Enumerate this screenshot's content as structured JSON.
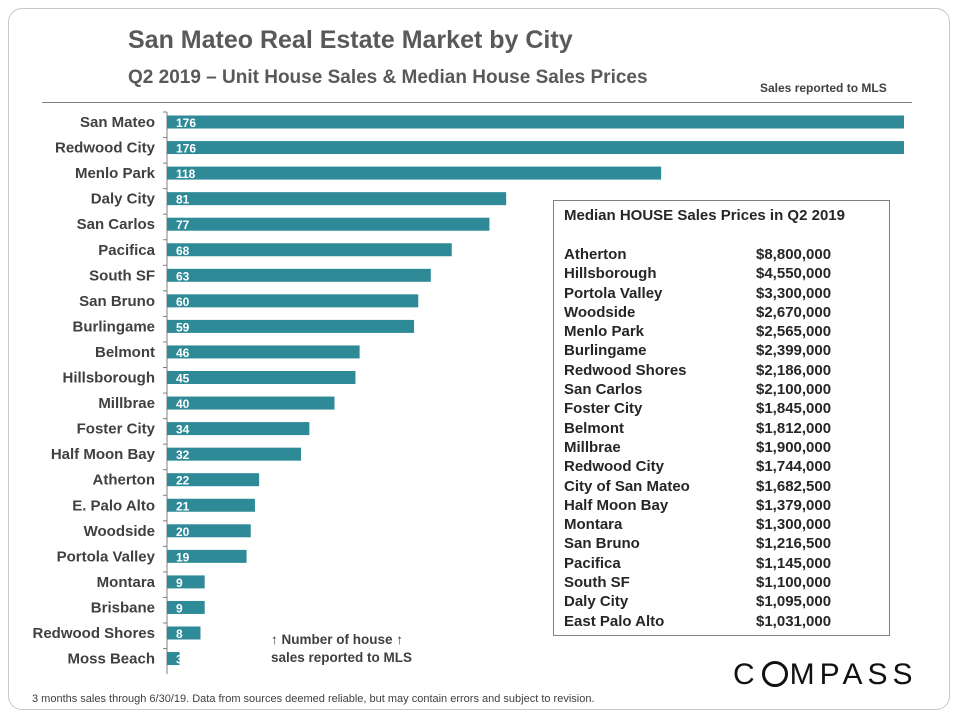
{
  "title": "San Mateo Real Estate Market by City",
  "subtitle": "Q2 2019 – Unit House Sales & Median House Sales Prices",
  "note_top_right": "Sales reported to MLS",
  "annotation_line1": "↑ Number of house ↑",
  "annotation_line2": "sales reported to MLS",
  "footnote": "3 months sales through 6/30/19. Data from sources deemed reliable, but may contain errors and subject to revision.",
  "logo": {
    "left": "C",
    "right": "MPASS"
  },
  "colors": {
    "bar": "#2e8a96",
    "text": "#404040"
  },
  "chart_data": {
    "type": "bar",
    "orientation": "horizontal",
    "categories": [
      "San Mateo",
      "Redwood City",
      "Menlo Park",
      "Daly City",
      "San Carlos",
      "Pacifica",
      "South SF",
      "San Bruno",
      "Burlingame",
      "Belmont",
      "Hillsborough",
      "Millbrae",
      "Foster City",
      "Half Moon Bay",
      "Atherton",
      "E. Palo Alto",
      "Woodside",
      "Portola Valley",
      "Montara",
      "Brisbane",
      "Redwood Shores",
      "Moss Beach"
    ],
    "values": [
      176,
      176,
      118,
      81,
      77,
      68,
      63,
      60,
      59,
      46,
      45,
      40,
      34,
      32,
      22,
      21,
      20,
      19,
      9,
      9,
      8,
      3
    ],
    "xlim": [
      0,
      176
    ],
    "data_labels": true,
    "grid": false
  },
  "price_table": {
    "title": "Median HOUSE Sales Prices in Q2 2019",
    "rows": [
      {
        "city": "Atherton",
        "price": "$8,800,000"
      },
      {
        "city": "Hillsborough",
        "price": "$4,550,000"
      },
      {
        "city": "Portola Valley",
        "price": "$3,300,000"
      },
      {
        "city": "Woodside",
        "price": "$2,670,000"
      },
      {
        "city": "Menlo Park",
        "price": "$2,565,000"
      },
      {
        "city": "Burlingame",
        "price": "$2,399,000"
      },
      {
        "city": "Redwood Shores",
        "price": "$2,186,000"
      },
      {
        "city": "San Carlos",
        "price": "$2,100,000"
      },
      {
        "city": "Foster City",
        "price": "$1,845,000"
      },
      {
        "city": "Belmont",
        "price": "$1,812,000"
      },
      {
        "city": "Millbrae",
        "price": "$1,900,000"
      },
      {
        "city": "Redwood City",
        "price": "$1,744,000"
      },
      {
        "city": "City of San Mateo",
        "price": "$1,682,500"
      },
      {
        "city": "Half Moon Bay",
        "price": "$1,379,000"
      },
      {
        "city": "Montara",
        "price": "$1,300,000"
      },
      {
        "city": "San Bruno",
        "price": "$1,216,500"
      },
      {
        "city": "Pacifica",
        "price": "$1,145,000"
      },
      {
        "city": "South SF",
        "price": "$1,100,000"
      },
      {
        "city": "Daly City",
        "price": "$1,095,000"
      },
      {
        "city": "East Palo Alto",
        "price": "$1,031,000"
      }
    ]
  }
}
